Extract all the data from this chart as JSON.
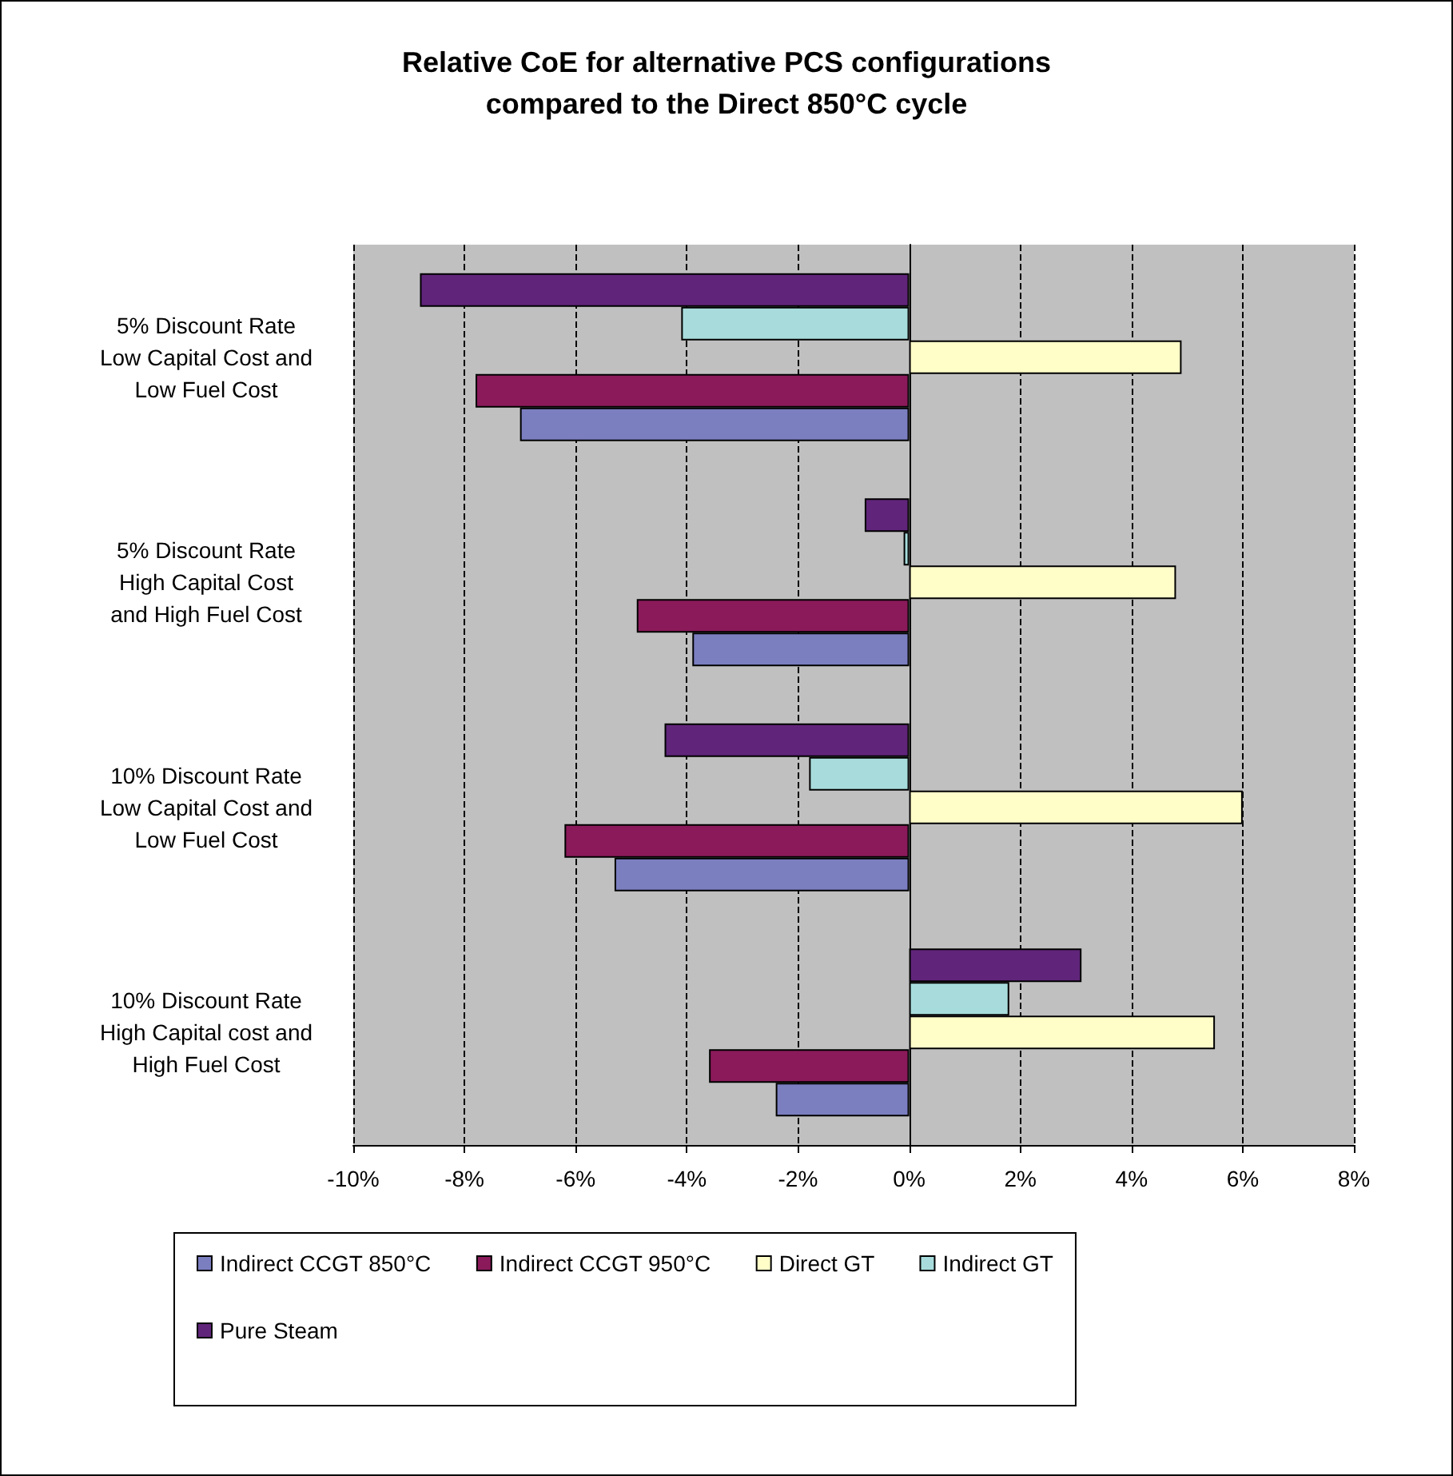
{
  "chart_data": {
    "type": "bar",
    "orientation": "horizontal",
    "title": "Relative CoE for alternative PCS configurations\ncompared to the Direct 850°C cycle",
    "categories": [
      "5% Discount Rate\nLow Capital Cost and\nLow Fuel Cost",
      "5% Discount Rate\nHigh Capital Cost\nand High Fuel Cost",
      "10% Discount Rate\nLow Capital Cost and\nLow Fuel Cost",
      "10% Discount Rate\nHigh Capital cost and\nHigh Fuel Cost"
    ],
    "series": [
      {
        "name": "Indirect CCGT 850°C",
        "color": "#7b7fc0",
        "values": [
          -7.0,
          -3.9,
          -5.3,
          -2.4
        ]
      },
      {
        "name": "Indirect CCGT 950°C",
        "color": "#8b1a5a",
        "values": [
          -7.8,
          -4.9,
          -6.2,
          -3.6
        ]
      },
      {
        "name": "Direct GT",
        "color": "#fffdc8",
        "values": [
          4.9,
          4.8,
          6.0,
          5.5
        ]
      },
      {
        "name": "Indirect GT",
        "color": "#a8dcdc",
        "values": [
          -4.1,
          -0.1,
          -1.8,
          1.8
        ]
      },
      {
        "name": "Pure Steam",
        "color": "#60257a",
        "values": [
          -8.8,
          -0.8,
          -4.4,
          3.1
        ]
      }
    ],
    "xlim": [
      -10,
      8
    ],
    "xticks": [
      {
        "value": -10,
        "label": "-10%"
      },
      {
        "value": -8,
        "label": "-8%"
      },
      {
        "value": -6,
        "label": "-6%"
      },
      {
        "value": -4,
        "label": "-4%"
      },
      {
        "value": -2,
        "label": "-2%"
      },
      {
        "value": 0,
        "label": "0%"
      },
      {
        "value": 2,
        "label": "2%"
      },
      {
        "value": 4,
        "label": "4%"
      },
      {
        "value": 6,
        "label": "6%"
      },
      {
        "value": 8,
        "label": "8%"
      }
    ],
    "grid": "x",
    "legend": "bottom"
  }
}
